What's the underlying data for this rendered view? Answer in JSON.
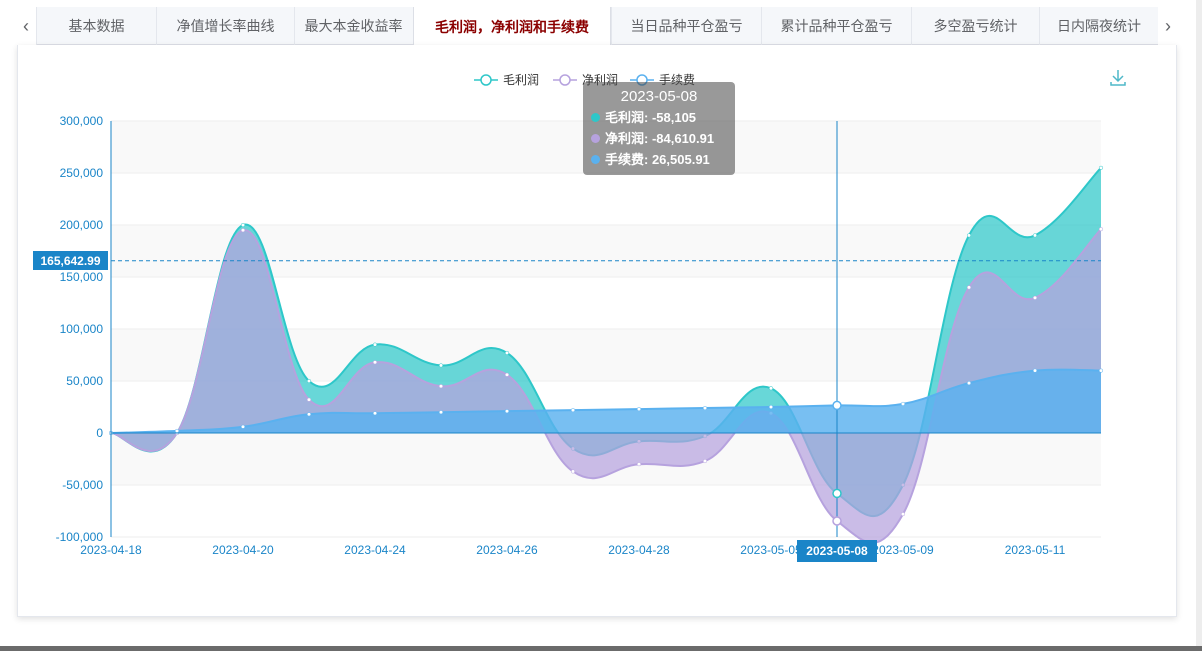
{
  "tabs": [
    {
      "label": "基本数据",
      "active": false
    },
    {
      "label": "净值增长率曲线",
      "active": false
    },
    {
      "label": "最大本金收益率",
      "active": false
    },
    {
      "label": "毛利润，净利润和手续费",
      "active": true
    },
    {
      "label": "当日品种平仓盈亏",
      "active": false
    },
    {
      "label": "累计品种平仓盈亏",
      "active": false
    },
    {
      "label": "多空盈亏统计",
      "active": false
    },
    {
      "label": "日内隔夜统计",
      "active": false
    }
  ],
  "icons": {
    "tab_left": "chevron-left-icon",
    "tab_right": "chevron-right-icon",
    "download": "download-icon"
  },
  "tooltip": {
    "date": "2023-05-08",
    "rows": [
      {
        "label": "毛利润: -58,105",
        "color": "#2ec7c9"
      },
      {
        "label": "净利润: -84,610.91",
        "color": "#b6a2de"
      },
      {
        "label": "手续费: 26,505.91",
        "color": "#5ab1ef"
      }
    ]
  },
  "crosshair": {
    "y_value_label": "165,642.99",
    "x_value_label": "2023-05-08"
  },
  "chart_data": {
    "type": "area",
    "x": [
      "2023-04-18",
      "2023-04-19",
      "2023-04-20",
      "2023-04-21",
      "2023-04-24",
      "2023-04-25",
      "2023-04-26",
      "2023-04-27",
      "2023-04-28",
      "2023-05-04",
      "2023-05-05",
      "2023-05-08",
      "2023-05-09",
      "2023-05-10",
      "2023-05-11",
      "2023-05-12"
    ],
    "x_tick_labels": [
      "2023-04-18",
      "2023-04-20",
      "2023-04-24",
      "2023-04-26",
      "2023-04-28",
      "2023-05-05",
      "2023-05-09",
      "2023-05-11"
    ],
    "series": [
      {
        "name": "毛利润",
        "color": "#2ec7c9",
        "values": [
          0,
          0,
          200000,
          50000,
          85000,
          65000,
          77000,
          -15000,
          -8000,
          -3000,
          43000,
          -58105,
          -50000,
          190000,
          190000,
          255000
        ]
      },
      {
        "name": "净利润",
        "color": "#b6a2de",
        "values": [
          0,
          0,
          195000,
          32000,
          68000,
          45000,
          56000,
          -37000,
          -30000,
          -27000,
          19000,
          -84610.91,
          -78000,
          140000,
          130000,
          196000
        ]
      },
      {
        "name": "手续费",
        "color": "#5ab1ef",
        "values": [
          0,
          2000,
          6000,
          18000,
          19000,
          20000,
          21000,
          22000,
          23000,
          24000,
          25000,
          26505.91,
          28000,
          48000,
          60000,
          60000
        ]
      }
    ],
    "ylim": [
      -100000,
      300000
    ],
    "yticks": [
      "300,000",
      "250,000",
      "200,000",
      "150,000",
      "100,000",
      "50,000",
      "0",
      "-50,000",
      "-100,000"
    ],
    "legend_position": "top-center",
    "grid": true
  }
}
